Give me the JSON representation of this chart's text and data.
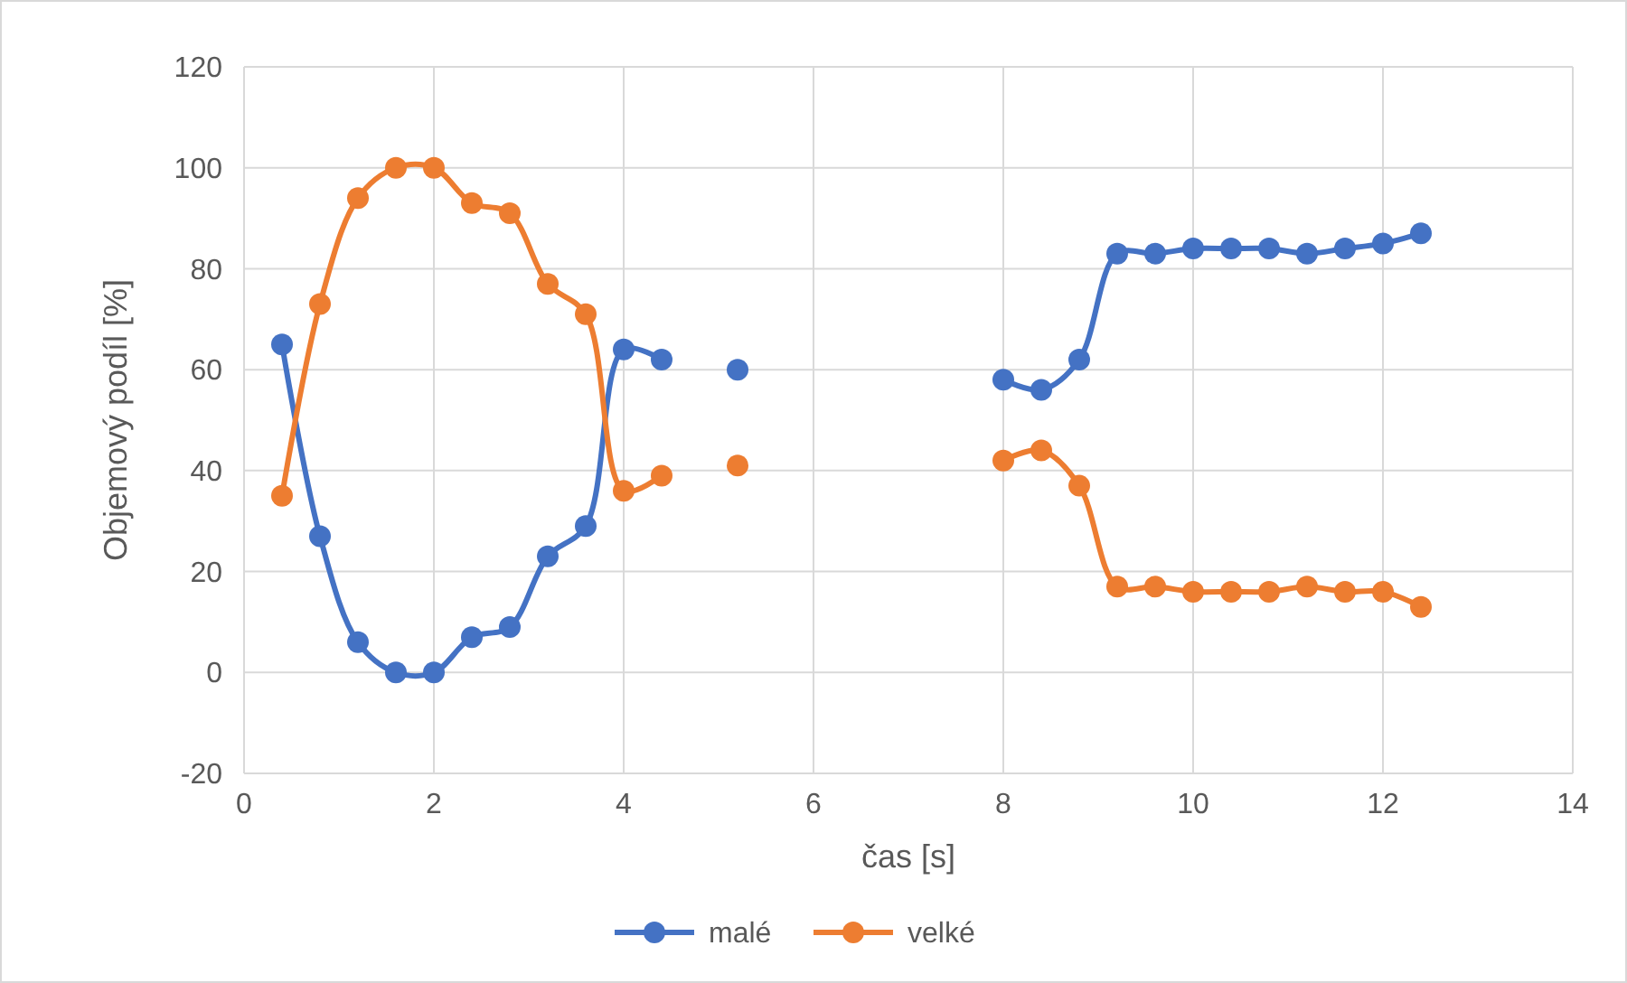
{
  "chart_data": {
    "type": "line",
    "xlabel": "čas [s]",
    "ylabel": "Objemový podíl [%]",
    "x": [
      0.4,
      0.8,
      1.2,
      1.6,
      2.0,
      2.4,
      2.8,
      3.2,
      3.6,
      4.0,
      4.4,
      4.8,
      5.2,
      5.6,
      6.0,
      6.4,
      6.8,
      7.2,
      7.6,
      8.0,
      8.4,
      8.8,
      9.2,
      9.6,
      10.0,
      10.4,
      10.8,
      11.2,
      11.6,
      12.0,
      12.4
    ],
    "series": [
      {
        "name": "malé",
        "color": "#4472c4",
        "values": [
          65,
          27,
          6,
          0,
          0,
          7,
          9,
          23,
          29,
          64,
          62,
          null,
          60,
          null,
          null,
          null,
          null,
          null,
          null,
          58,
          56,
          62,
          83,
          83,
          84,
          84,
          84,
          83,
          84,
          85,
          87
        ]
      },
      {
        "name": "velké",
        "color": "#ed7d31",
        "values": [
          35,
          73,
          94,
          100,
          100,
          93,
          91,
          77,
          71,
          36,
          39,
          null,
          41,
          null,
          null,
          null,
          null,
          null,
          null,
          42,
          44,
          37,
          17,
          17,
          16,
          16,
          16,
          17,
          16,
          16,
          13
        ]
      }
    ],
    "xlim": [
      0,
      14
    ],
    "xticks": [
      0,
      2,
      4,
      6,
      8,
      10,
      12,
      14
    ],
    "ylim": [
      -20,
      120
    ],
    "yticks": [
      -20,
      0,
      20,
      40,
      60,
      80,
      100,
      120
    ],
    "grid": true,
    "legend": "bottom",
    "marker": "circle",
    "line_style": "solid"
  }
}
